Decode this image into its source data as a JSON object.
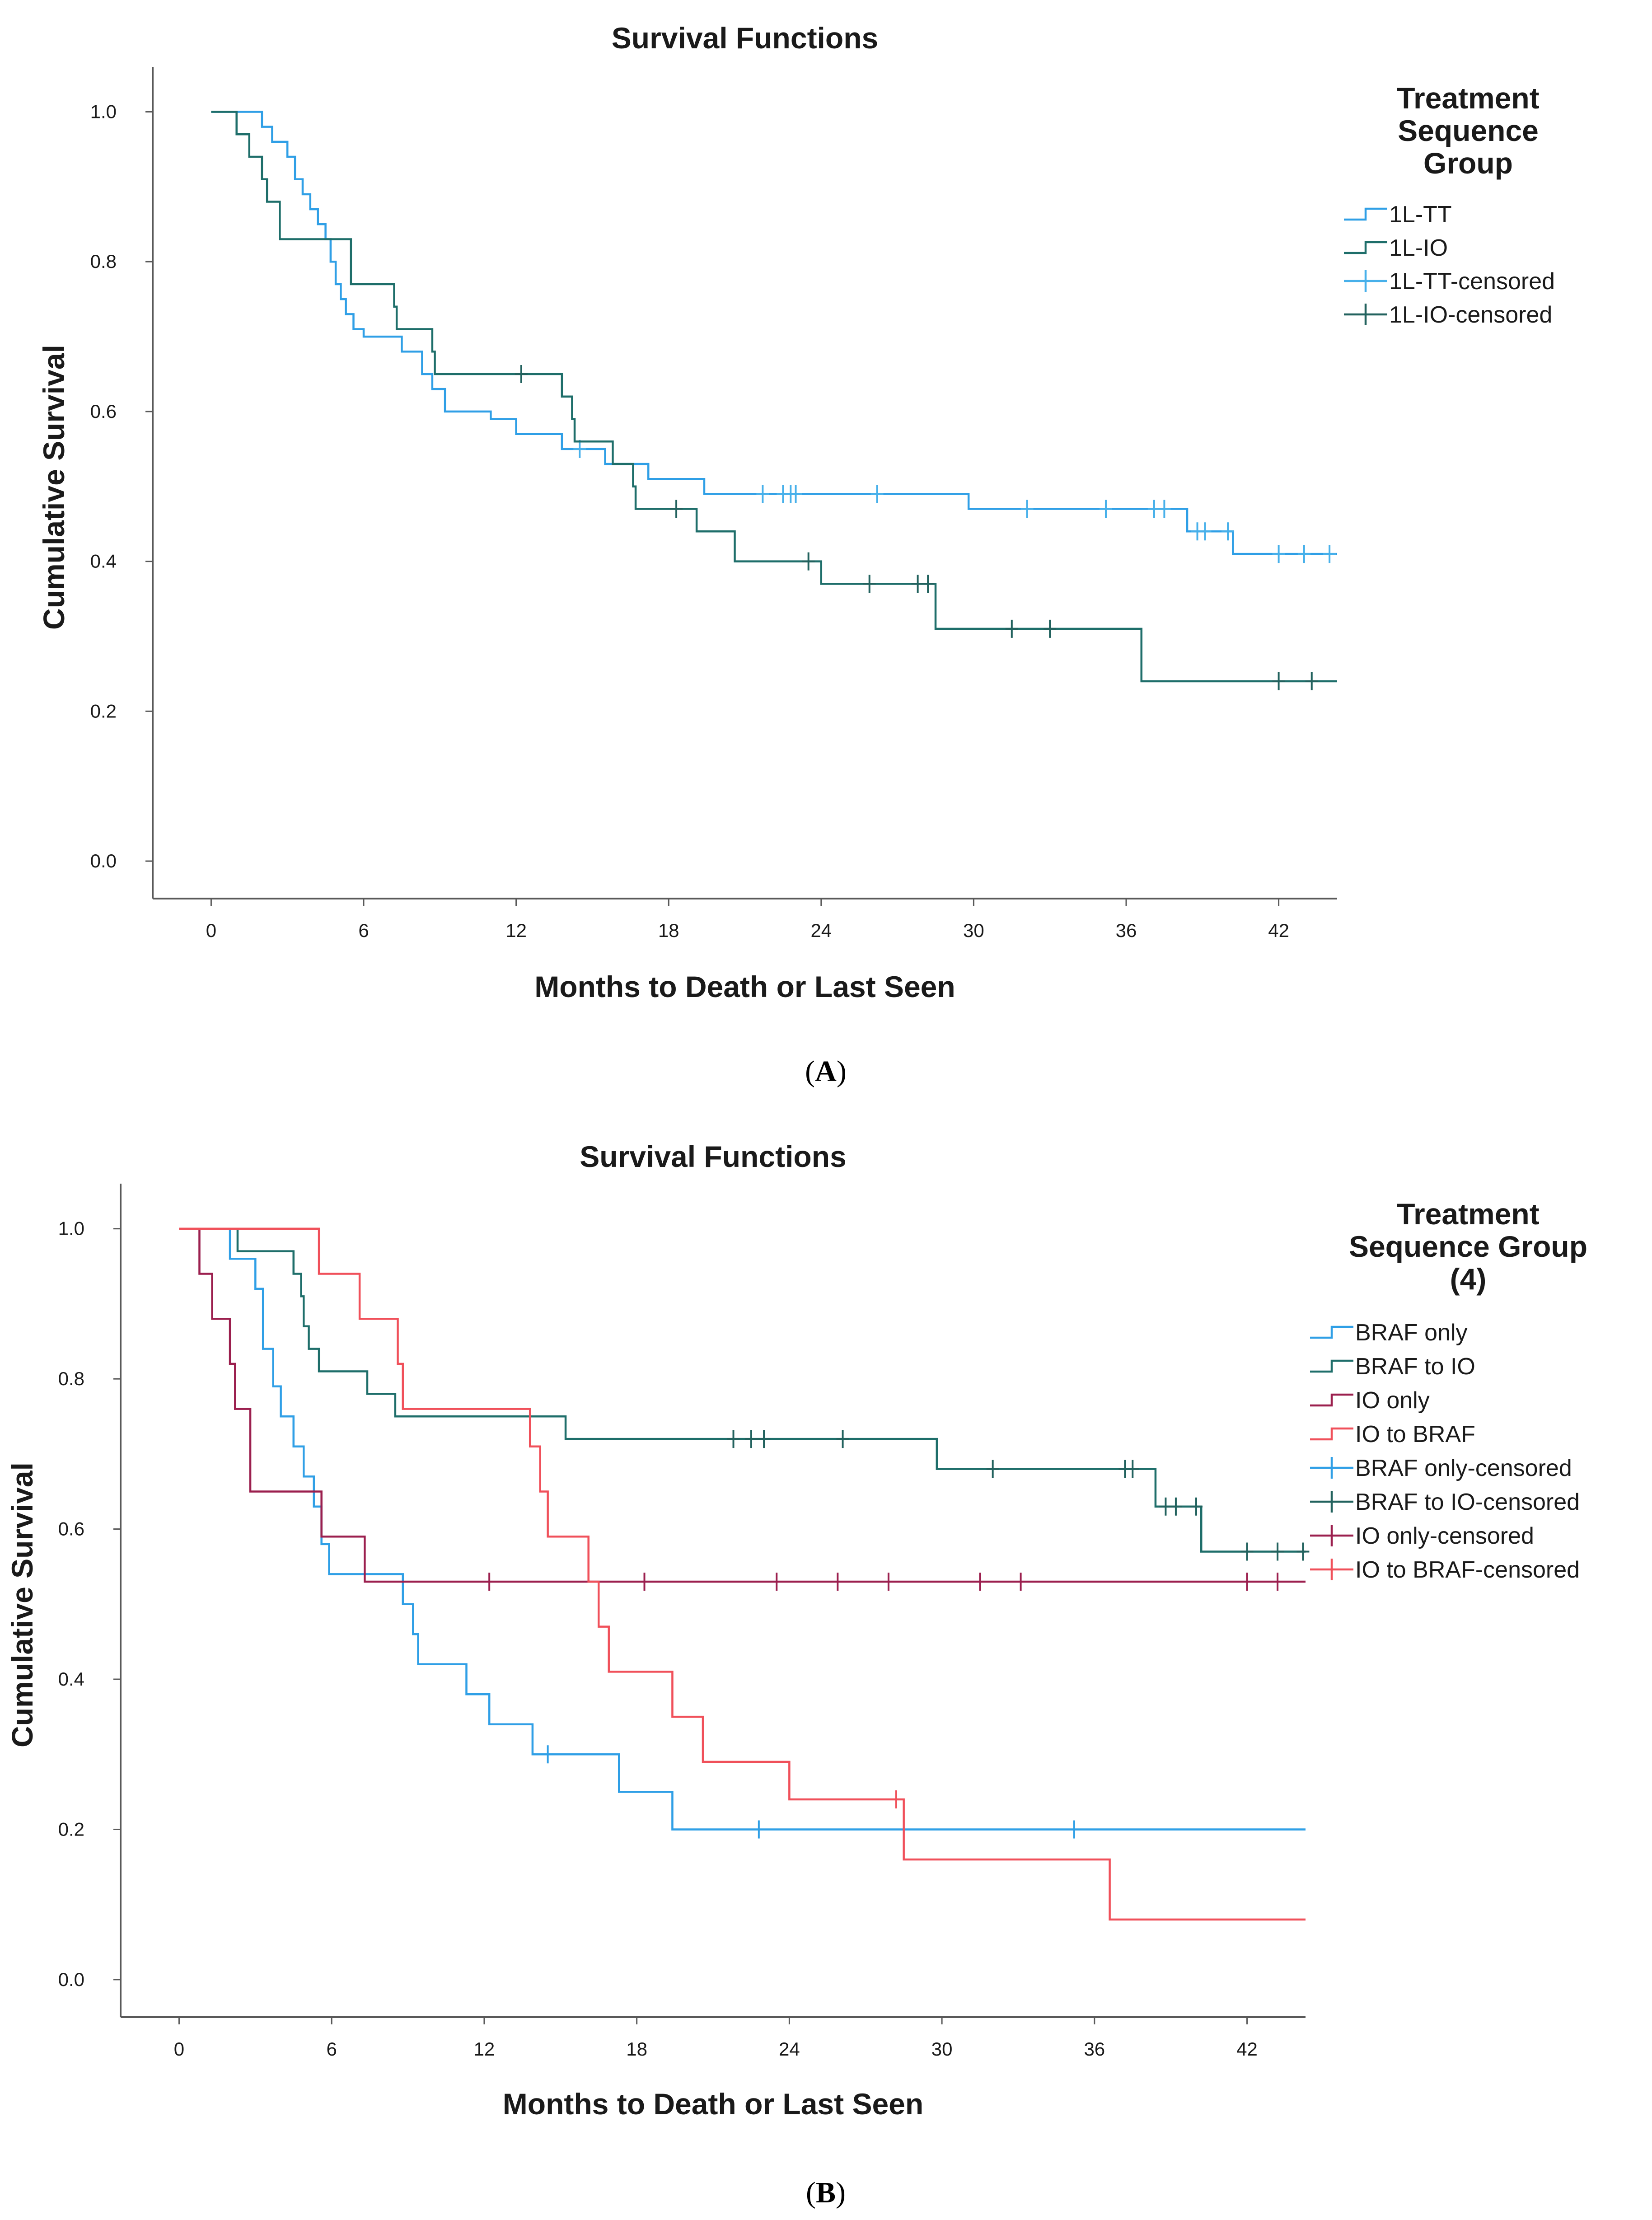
{
  "colors": {
    "tt": "#2f9fe6",
    "io": "#1e6e6a",
    "tt_censored": "#47b0ea",
    "io_censored": "#22625e",
    "braf_only": "#2f9fe6",
    "braf_to_io": "#1e6e6a",
    "io_only": "#9b1f4e",
    "io_to_braf": "#f0505a",
    "axis": "#595959"
  },
  "panels": [
    {
      "panel_label": "A",
      "legend_title_lines": [
        "Treatment",
        "Sequence",
        "Group"
      ]
    },
    {
      "panel_label": "B",
      "legend_title_lines": [
        "Treatment",
        "Sequence Group",
        "(4)"
      ]
    }
  ],
  "chart_data": [
    {
      "type": "line",
      "subtype": "kaplan-meier",
      "title": "Survival Functions",
      "xlabel": "Months to Death or Last Seen",
      "ylabel": "Cumulative Survival",
      "xlim": [
        -2.3,
        44.3
      ],
      "ylim": [
        -0.05,
        1.06
      ],
      "xticks": [
        0,
        6,
        12,
        18,
        24,
        30,
        36,
        42
      ],
      "yticks": [
        0.0,
        0.2,
        0.4,
        0.6,
        0.8,
        1.0
      ],
      "ytick_labels": [
        "0.0",
        "0.2",
        "0.4",
        "0.6",
        "0.8",
        "1.0"
      ],
      "legend_position": "top-right",
      "series": [
        {
          "name": "1L-TT",
          "censored_name": "1L-TT-censored",
          "color_key": "tt",
          "censor_color_key": "tt_censored",
          "steps": [
            [
              0,
              1.0
            ],
            [
              2.0,
              0.98
            ],
            [
              2.4,
              0.96
            ],
            [
              3.0,
              0.94
            ],
            [
              3.3,
              0.91
            ],
            [
              3.6,
              0.89
            ],
            [
              3.9,
              0.87
            ],
            [
              4.2,
              0.85
            ],
            [
              4.5,
              0.83
            ],
            [
              4.7,
              0.8
            ],
            [
              4.9,
              0.77
            ],
            [
              5.1,
              0.75
            ],
            [
              5.3,
              0.73
            ],
            [
              5.6,
              0.71
            ],
            [
              6.0,
              0.7
            ],
            [
              7.5,
              0.68
            ],
            [
              8.3,
              0.65
            ],
            [
              8.7,
              0.63
            ],
            [
              9.2,
              0.6
            ],
            [
              11.0,
              0.59
            ],
            [
              12.0,
              0.57
            ],
            [
              13.8,
              0.55
            ],
            [
              15.5,
              0.53
            ],
            [
              17.2,
              0.51
            ],
            [
              19.4,
              0.49
            ],
            [
              29.8,
              0.47
            ],
            [
              38.4,
              0.44
            ],
            [
              40.2,
              0.41
            ]
          ],
          "end_x": 44.3,
          "censored": [
            [
              14.5,
              0.55
            ],
            [
              21.7,
              0.49
            ],
            [
              22.5,
              0.49
            ],
            [
              22.8,
              0.49
            ],
            [
              23.0,
              0.49
            ],
            [
              26.2,
              0.49
            ],
            [
              32.1,
              0.47
            ],
            [
              35.2,
              0.47
            ],
            [
              37.1,
              0.47
            ],
            [
              37.5,
              0.47
            ],
            [
              38.8,
              0.44
            ],
            [
              39.1,
              0.44
            ],
            [
              40.0,
              0.44
            ],
            [
              42.0,
              0.41
            ],
            [
              43.0,
              0.41
            ],
            [
              44.0,
              0.41
            ]
          ]
        },
        {
          "name": "1L-IO",
          "censored_name": "1L-IO-censored",
          "color_key": "io",
          "censor_color_key": "io_censored",
          "steps": [
            [
              0,
              1.0
            ],
            [
              1.0,
              0.97
            ],
            [
              1.5,
              0.94
            ],
            [
              2.0,
              0.91
            ],
            [
              2.2,
              0.88
            ],
            [
              2.7,
              0.83
            ],
            [
              5.5,
              0.77
            ],
            [
              7.2,
              0.74
            ],
            [
              7.3,
              0.71
            ],
            [
              8.7,
              0.68
            ],
            [
              8.8,
              0.65
            ],
            [
              13.8,
              0.62
            ],
            [
              14.2,
              0.59
            ],
            [
              14.3,
              0.56
            ],
            [
              15.8,
              0.53
            ],
            [
              16.6,
              0.5
            ],
            [
              16.7,
              0.47
            ],
            [
              19.1,
              0.44
            ],
            [
              20.6,
              0.4
            ],
            [
              24.0,
              0.37
            ],
            [
              28.5,
              0.31
            ],
            [
              36.6,
              0.24
            ]
          ],
          "end_x": 44.3,
          "censored": [
            [
              12.2,
              0.65
            ],
            [
              18.3,
              0.47
            ],
            [
              23.5,
              0.4
            ],
            [
              25.9,
              0.37
            ],
            [
              27.8,
              0.37
            ],
            [
              28.2,
              0.37
            ],
            [
              31.5,
              0.31
            ],
            [
              33.0,
              0.31
            ],
            [
              42.0,
              0.24
            ],
            [
              43.3,
              0.24
            ]
          ]
        }
      ],
      "legend_entries": [
        "1L-TT",
        "1L-IO",
        "1L-TT-censored",
        "1L-IO-censored"
      ]
    },
    {
      "type": "line",
      "subtype": "kaplan-meier",
      "title": "Survival Functions",
      "xlabel": "Months to Death or Last Seen",
      "ylabel": "Cumulative Survival",
      "xlim": [
        -2.3,
        44.3
      ],
      "ylim": [
        -0.05,
        1.06
      ],
      "xticks": [
        0,
        6,
        12,
        18,
        24,
        30,
        36,
        42
      ],
      "yticks": [
        0.0,
        0.2,
        0.4,
        0.6,
        0.8,
        1.0
      ],
      "ytick_labels": [
        "0.0",
        "0.2",
        "0.4",
        "0.6",
        "0.8",
        "1.0"
      ],
      "legend_position": "top-right",
      "series": [
        {
          "name": "BRAF only",
          "censored_name": "BRAF only-censored",
          "color_key": "braf_only",
          "censor_color_key": "braf_only",
          "steps": [
            [
              0,
              1.0
            ],
            [
              2.0,
              0.96
            ],
            [
              3.0,
              0.92
            ],
            [
              3.3,
              0.84
            ],
            [
              3.7,
              0.79
            ],
            [
              4.0,
              0.75
            ],
            [
              4.5,
              0.71
            ],
            [
              4.9,
              0.67
            ],
            [
              5.3,
              0.63
            ],
            [
              5.6,
              0.58
            ],
            [
              5.9,
              0.54
            ],
            [
              8.8,
              0.5
            ],
            [
              9.2,
              0.46
            ],
            [
              9.4,
              0.42
            ],
            [
              11.3,
              0.38
            ],
            [
              12.2,
              0.34
            ],
            [
              13.9,
              0.3
            ],
            [
              17.3,
              0.25
            ],
            [
              19.4,
              0.2
            ]
          ],
          "end_x": 44.3,
          "censored": [
            [
              14.5,
              0.3
            ],
            [
              22.8,
              0.2
            ],
            [
              35.2,
              0.2
            ]
          ]
        },
        {
          "name": "BRAF to IO",
          "censored_name": "BRAF to IO-censored",
          "color_key": "braf_to_io",
          "censor_color_key": "io_censored",
          "steps": [
            [
              0,
              1.0
            ],
            [
              2.3,
              0.97
            ],
            [
              4.5,
              0.94
            ],
            [
              4.8,
              0.91
            ],
            [
              4.9,
              0.87
            ],
            [
              5.1,
              0.84
            ],
            [
              5.5,
              0.81
            ],
            [
              7.4,
              0.78
            ],
            [
              8.5,
              0.75
            ],
            [
              15.2,
              0.72
            ],
            [
              29.8,
              0.68
            ],
            [
              38.4,
              0.63
            ],
            [
              40.2,
              0.57
            ]
          ],
          "end_x": 44.3,
          "censored": [
            [
              21.8,
              0.72
            ],
            [
              22.5,
              0.72
            ],
            [
              23.0,
              0.72
            ],
            [
              26.1,
              0.72
            ],
            [
              32.0,
              0.68
            ],
            [
              37.2,
              0.68
            ],
            [
              37.5,
              0.68
            ],
            [
              38.8,
              0.63
            ],
            [
              39.2,
              0.63
            ],
            [
              40.0,
              0.63
            ],
            [
              42.0,
              0.57
            ],
            [
              43.2,
              0.57
            ],
            [
              44.2,
              0.57
            ]
          ]
        },
        {
          "name": "IO only",
          "censored_name": "IO only-censored",
          "color_key": "io_only",
          "censor_color_key": "io_only",
          "steps": [
            [
              0,
              1.0
            ],
            [
              0.8,
              0.94
            ],
            [
              1.3,
              0.88
            ],
            [
              2.0,
              0.82
            ],
            [
              2.2,
              0.76
            ],
            [
              2.8,
              0.65
            ],
            [
              5.6,
              0.59
            ],
            [
              7.3,
              0.53
            ]
          ],
          "end_x": 44.3,
          "censored": [
            [
              12.2,
              0.53
            ],
            [
              18.3,
              0.53
            ],
            [
              23.5,
              0.53
            ],
            [
              25.9,
              0.53
            ],
            [
              27.9,
              0.53
            ],
            [
              31.5,
              0.53
            ],
            [
              33.1,
              0.53
            ],
            [
              42.0,
              0.53
            ],
            [
              43.2,
              0.53
            ]
          ]
        },
        {
          "name": "IO to BRAF",
          "censored_name": "IO to BRAF-censored",
          "color_key": "io_to_braf",
          "censor_color_key": "io_to_braf",
          "steps": [
            [
              0,
              1.0
            ],
            [
              5.5,
              0.94
            ],
            [
              7.1,
              0.88
            ],
            [
              8.6,
              0.82
            ],
            [
              8.8,
              0.76
            ],
            [
              13.8,
              0.71
            ],
            [
              14.2,
              0.65
            ],
            [
              14.5,
              0.59
            ],
            [
              16.1,
              0.53
            ],
            [
              16.5,
              0.47
            ],
            [
              16.9,
              0.41
            ],
            [
              19.4,
              0.35
            ],
            [
              20.6,
              0.29
            ],
            [
              24.0,
              0.24
            ],
            [
              28.5,
              0.16
            ],
            [
              36.6,
              0.08
            ]
          ],
          "end_x": 44.3,
          "censored": [
            [
              28.2,
              0.24
            ]
          ]
        }
      ],
      "legend_entries": [
        "BRAF only",
        "BRAF to IO",
        "IO only",
        "IO to BRAF",
        "BRAF only-censored",
        "BRAF to IO-censored",
        "IO only-censored",
        "IO to BRAF-censored"
      ]
    }
  ]
}
